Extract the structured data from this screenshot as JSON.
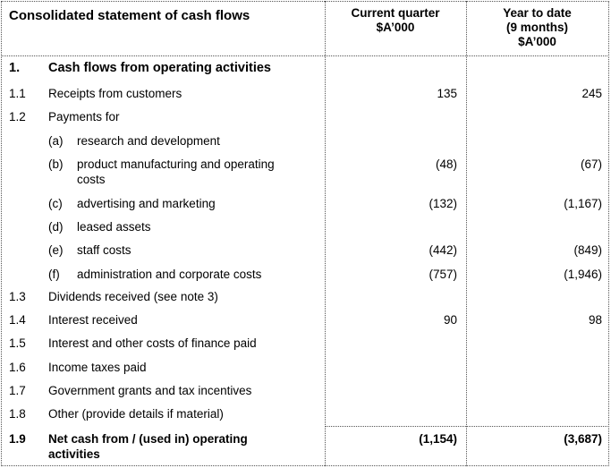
{
  "header": {
    "title": "Consolidated statement of cash flows",
    "col1": [
      "Current quarter",
      "$A’000"
    ],
    "col2": [
      "Year to date",
      "(9 months)",
      "$A’000"
    ]
  },
  "section": {
    "num": "1.",
    "label": "Cash flows from operating activities"
  },
  "rows": [
    {
      "num": "1.1",
      "label": "Receipts from customers",
      "cq": "135",
      "ytd": "245"
    },
    {
      "num": "1.2",
      "label": "Payments for",
      "cq": "",
      "ytd": ""
    },
    {
      "num": "",
      "sub": "(a)",
      "label": "research and development",
      "cq": "",
      "ytd": ""
    },
    {
      "num": "",
      "sub": "(b)",
      "label": "product manufacturing and operating",
      "label2": "costs",
      "cq": "(48)",
      "ytd": "(67)"
    },
    {
      "num": "",
      "sub": "(c)",
      "label": "advertising and marketing",
      "cq": "(132)",
      "ytd": "(1,167)"
    },
    {
      "num": "",
      "sub": "(d)",
      "label": "leased assets",
      "cq": "",
      "ytd": ""
    },
    {
      "num": "",
      "sub": "(e)",
      "label": "staff costs",
      "cq": "(442)",
      "ytd": "(849)"
    },
    {
      "num": "",
      "sub": "(f)",
      "label": "administration and corporate costs",
      "cq": "(757)",
      "ytd": "(1,946)"
    },
    {
      "num": "1.3",
      "label": "Dividends received (see note 3)",
      "cq": "",
      "ytd": ""
    },
    {
      "num": "1.4",
      "label": "Interest received",
      "cq": "90",
      "ytd": "98"
    },
    {
      "num": "1.5",
      "label": "Interest and other costs of finance paid",
      "cq": "",
      "ytd": ""
    },
    {
      "num": "1.6",
      "label": "Income taxes paid",
      "cq": "",
      "ytd": ""
    },
    {
      "num": "1.7",
      "label": "Government grants and tax incentives",
      "cq": "",
      "ytd": ""
    },
    {
      "num": "1.8",
      "label": "Other (provide details if material)",
      "cq": "",
      "ytd": ""
    }
  ],
  "total": {
    "num": "1.9",
    "label": "Net cash from / (used in) operating",
    "label2": "activities",
    "cq": "(1,154)",
    "ytd": "(3,687)"
  }
}
